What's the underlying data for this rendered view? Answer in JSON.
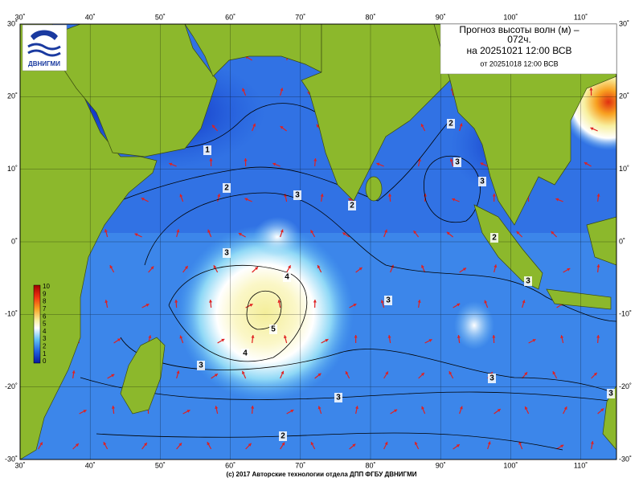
{
  "title": {
    "line1": "Прогноз высоты волн (м) –",
    "line2": "072ч.",
    "line3": "на 20251021 12:00 ВСВ",
    "line4": "от 20251018 12:00 ВСВ"
  },
  "logo": "ДВНИГМИ",
  "lon_labels": [
    "30˚",
    "40˚",
    "50˚",
    "60˚",
    "70˚",
    "80˚",
    "90˚",
    "100˚",
    "110˚"
  ],
  "lat_labels": [
    "30˚",
    "20˚",
    "10˚",
    "0˚",
    "-10˚",
    "-20˚",
    "-30˚"
  ],
  "colorbar": [
    "10",
    "9",
    "8",
    "7",
    "6",
    "5",
    "4",
    "3",
    "2",
    "1",
    "0"
  ],
  "contours": [
    "1",
    "2",
    "3",
    "2",
    "2",
    "3",
    "3",
    "2",
    "3",
    "3",
    "4",
    "5",
    "4",
    "3",
    "3",
    "3",
    "3",
    "2",
    "3"
  ],
  "footer": "(c) 2017 Авторские технологии отдела ДПП ФГБУ ДВНИГМИ"
}
